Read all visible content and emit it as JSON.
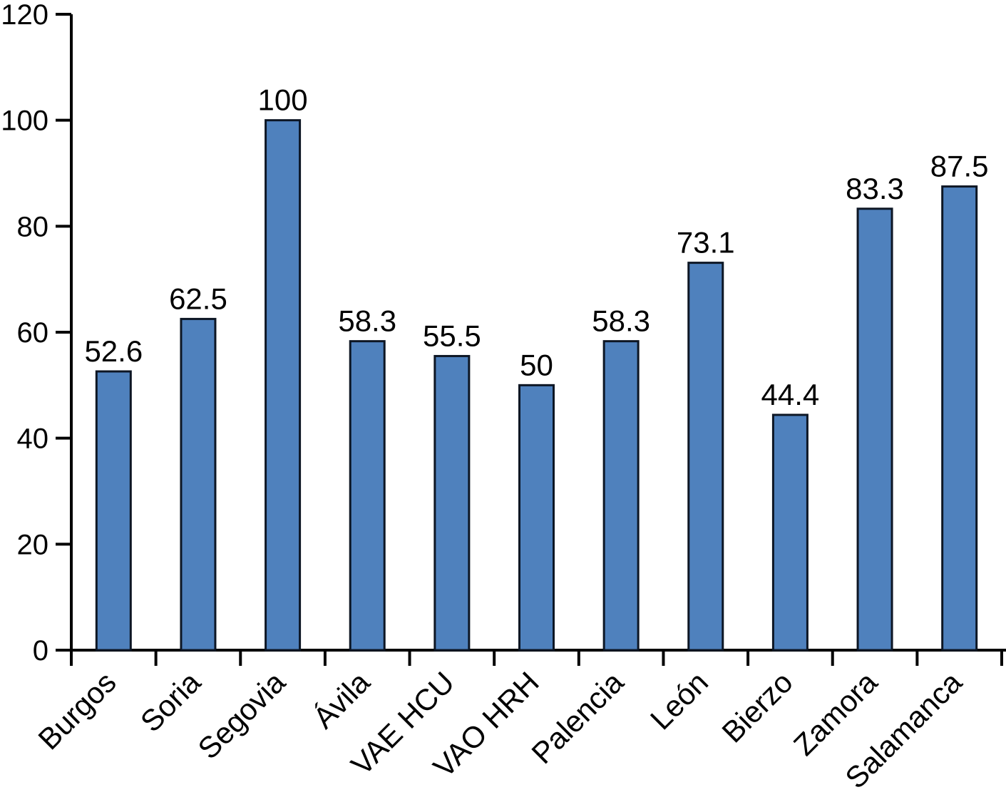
{
  "chart_data": {
    "type": "bar",
    "title": "",
    "xlabel": "",
    "ylabel": "",
    "categories": [
      "Burgos",
      "Soria",
      "Segovia",
      "Ávila",
      "VAE HCU",
      "VAO HRH",
      "Palencia",
      "León",
      "Bierzo",
      "Zamora",
      "Salamanca"
    ],
    "values": [
      52.6,
      62.5,
      100,
      58.3,
      55.5,
      50,
      58.3,
      73.1,
      44.4,
      83.3,
      87.5
    ],
    "value_labels": [
      "52.6",
      "62.5",
      "100",
      "58.3",
      "55.5",
      "50",
      "58.3",
      "73.1",
      "44.4",
      "83.3",
      "87.5"
    ],
    "ylim": [
      0,
      120
    ],
    "yticks": [
      0,
      20,
      40,
      60,
      80,
      100,
      120
    ],
    "grid": false,
    "legend": null,
    "xlabel_rotation_deg": 45,
    "colors": {
      "bar_fill": "#4F81BD",
      "bar_stroke": "#0d1624",
      "axis": "#000000",
      "text": "#000000",
      "background": "#ffffff"
    }
  }
}
